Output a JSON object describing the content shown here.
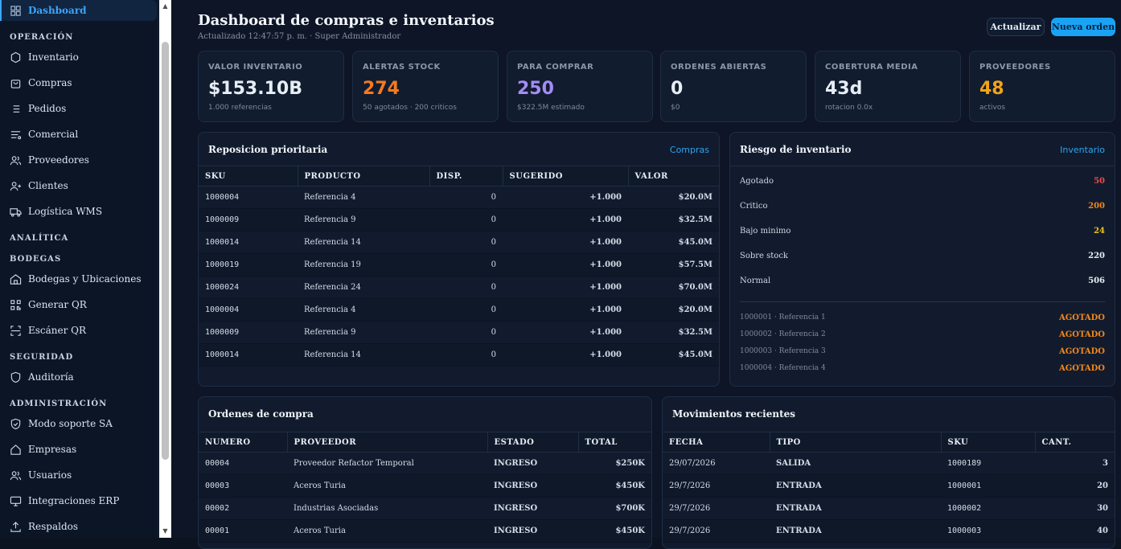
{
  "sidebar": {
    "active": "Dashboard",
    "sections": {
      "operacion": "OPERACIÓN",
      "analitica": "ANALÍTICA",
      "bodegas": "BODEGAS",
      "seguridad": "SEGURIDAD",
      "administracion": "ADMINISTRACIÓN"
    },
    "items": {
      "inventario": "Inventario",
      "compras": "Compras",
      "pedidos": "Pedidos",
      "comercial": "Comercial",
      "proveedores": "Proveedores",
      "clientes": "Clientes",
      "logistica": "Logística WMS",
      "bodegas_ubicaciones": "Bodegas y Ubicaciones",
      "generar_qr": "Generar QR",
      "escaner_qr": "Escáner QR",
      "auditoria": "Auditoría",
      "modo_soporte": "Modo soporte SA",
      "empresas": "Empresas",
      "usuarios": "Usuarios",
      "integraciones": "Integraciones ERP",
      "respaldos": "Respaldos"
    }
  },
  "header": {
    "title": "Dashboard de compras e inventarios",
    "subtitle": "Actualizado 12:47:57 p. m. · Super Administrador",
    "refresh_label": "Actualizar",
    "new_order_label": "Nueva orden"
  },
  "kpis": [
    {
      "label": "VALOR INVENTARIO",
      "value": "$153.10B",
      "sub": "1.000 referencias",
      "color": "#e6edf5"
    },
    {
      "label": "ALERTAS STOCK",
      "value": "274",
      "sub": "50 agotados · 200 criticos",
      "color": "#f47a1f"
    },
    {
      "label": "PARA COMPRAR",
      "value": "250",
      "sub": "$322.5M estimado",
      "color": "#a48cf5"
    },
    {
      "label": "ORDENES ABIERTAS",
      "value": "0",
      "sub": "$0",
      "color": "#e6edf5"
    },
    {
      "label": "COBERTURA MEDIA",
      "value": "43d",
      "sub": "rotacion 0.0x",
      "color": "#e6edf5"
    },
    {
      "label": "PROVEEDORES",
      "value": "48",
      "sub": "activos",
      "color": "#f2a219"
    }
  ],
  "reposicion": {
    "title": "Reposicion prioritaria",
    "link": "Compras",
    "columns": [
      "SKU",
      "PRODUCTO",
      "DISP.",
      "SUGERIDO",
      "VALOR"
    ],
    "rows": [
      [
        "1000004",
        "Referencia 4",
        "0",
        "+1.000",
        "$20.0M"
      ],
      [
        "1000009",
        "Referencia 9",
        "0",
        "+1.000",
        "$32.5M"
      ],
      [
        "1000014",
        "Referencia 14",
        "0",
        "+1.000",
        "$45.0M"
      ],
      [
        "1000019",
        "Referencia 19",
        "0",
        "+1.000",
        "$57.5M"
      ],
      [
        "1000024",
        "Referencia 24",
        "0",
        "+1.000",
        "$70.0M"
      ],
      [
        "1000004",
        "Referencia 4",
        "0",
        "+1.000",
        "$20.0M"
      ],
      [
        "1000009",
        "Referencia 9",
        "0",
        "+1.000",
        "$32.5M"
      ],
      [
        "1000014",
        "Referencia 14",
        "0",
        "+1.000",
        "$45.0M"
      ]
    ]
  },
  "riesgo": {
    "title": "Riesgo de inventario",
    "link": "Inventario",
    "levels": [
      {
        "label": "Agotado",
        "value": "50",
        "color": "#ef4b4b"
      },
      {
        "label": "Critico",
        "value": "200",
        "color": "#f2871c"
      },
      {
        "label": "Bajo minimo",
        "value": "24",
        "color": "#f2c21c"
      },
      {
        "label": "Sobre stock",
        "value": "220",
        "color": "#e6edf5"
      },
      {
        "label": "Normal",
        "value": "506",
        "color": "#e6edf5"
      }
    ],
    "items": [
      {
        "label": "1000001 · Referencia 1",
        "status": "AGOTADO"
      },
      {
        "label": "1000002 · Referencia 2",
        "status": "AGOTADO"
      },
      {
        "label": "1000003 · Referencia 3",
        "status": "AGOTADO"
      },
      {
        "label": "1000004 · Referencia 4",
        "status": "AGOTADO"
      }
    ]
  },
  "ordenes": {
    "title": "Ordenes de compra",
    "columns": [
      "NUMERO",
      "PROVEEDOR",
      "ESTADO",
      "TOTAL"
    ],
    "rows": [
      [
        "00004",
        "Proveedor Refactor Temporal",
        "INGRESO",
        "$250K"
      ],
      [
        "00003",
        "Aceros Turia",
        "INGRESO",
        "$450K"
      ],
      [
        "00002",
        "Industrias Asociadas",
        "INGRESO",
        "$700K"
      ],
      [
        "00001",
        "Aceros Turia",
        "INGRESO",
        "$450K"
      ]
    ]
  },
  "movimientos": {
    "title": "Movimientos recientes",
    "columns": [
      "FECHA",
      "TIPO",
      "SKU",
      "CANT."
    ],
    "rows": [
      [
        "29/07/2026",
        "SALIDA",
        "1000189",
        "3"
      ],
      [
        "29/7/2026",
        "ENTRADA",
        "1000001",
        "20"
      ],
      [
        "29/7/2026",
        "ENTRADA",
        "1000002",
        "30"
      ],
      [
        "29/7/2026",
        "ENTRADA",
        "1000003",
        "40"
      ]
    ]
  }
}
